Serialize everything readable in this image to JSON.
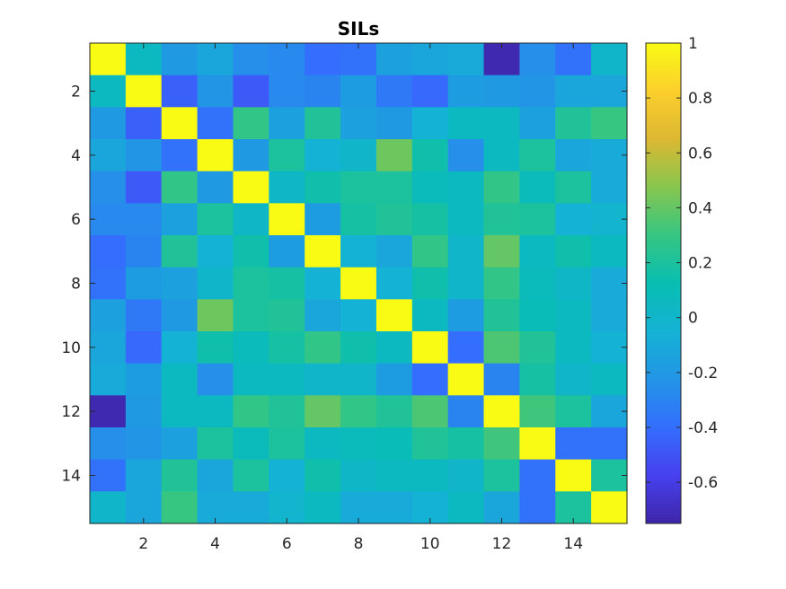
{
  "chart_data": {
    "type": "heatmap",
    "title": "SILs",
    "xlabel": "",
    "ylabel": "",
    "rows": 15,
    "cols": 15,
    "x_ticks": [
      2,
      4,
      6,
      8,
      10,
      12,
      14
    ],
    "y_ticks": [
      2,
      4,
      6,
      8,
      10,
      12,
      14
    ],
    "colorbar": {
      "min": -0.75,
      "max": 1,
      "ticks": [
        1,
        0.8,
        0.6,
        0.4,
        0.2,
        0,
        -0.2,
        -0.4,
        -0.6
      ],
      "tick_labels": [
        "1",
        "0.8",
        "0.6",
        "0.4",
        "0.2",
        "0",
        "-0.2",
        "-0.4",
        "-0.6"
      ],
      "colormap": "parula"
    },
    "values": [
      [
        1.0,
        0.05,
        -0.2,
        -0.12,
        -0.25,
        -0.28,
        -0.4,
        -0.38,
        -0.15,
        -0.12,
        -0.1,
        -0.73,
        -0.25,
        -0.38,
        0.0
      ],
      [
        0.05,
        1.0,
        -0.45,
        -0.22,
        -0.48,
        -0.28,
        -0.3,
        -0.18,
        -0.35,
        -0.42,
        -0.18,
        -0.2,
        -0.22,
        -0.12,
        -0.12
      ],
      [
        -0.2,
        -0.45,
        1.0,
        -0.38,
        0.28,
        -0.15,
        0.22,
        -0.15,
        -0.2,
        -0.05,
        0.05,
        0.05,
        -0.15,
        0.22,
        0.3
      ],
      [
        -0.12,
        -0.22,
        -0.38,
        1.0,
        -0.2,
        0.2,
        -0.05,
        0.0,
        0.42,
        0.15,
        -0.25,
        0.05,
        0.2,
        -0.12,
        -0.1
      ],
      [
        -0.25,
        -0.48,
        0.28,
        -0.2,
        1.0,
        0.02,
        0.15,
        0.2,
        0.2,
        0.08,
        0.05,
        0.28,
        0.08,
        0.2,
        -0.1
      ],
      [
        -0.28,
        -0.28,
        -0.15,
        0.2,
        0.02,
        1.0,
        -0.18,
        0.18,
        0.22,
        0.18,
        0.05,
        0.22,
        0.2,
        -0.05,
        -0.02
      ],
      [
        -0.4,
        -0.3,
        0.22,
        -0.05,
        0.15,
        -0.18,
        1.0,
        -0.05,
        -0.12,
        0.28,
        0.0,
        0.4,
        0.05,
        0.15,
        0.05
      ],
      [
        -0.38,
        -0.18,
        -0.15,
        0.0,
        0.2,
        0.18,
        -0.05,
        1.0,
        -0.05,
        0.15,
        0.0,
        0.28,
        0.08,
        0.02,
        -0.1
      ],
      [
        -0.15,
        -0.35,
        -0.2,
        0.42,
        0.2,
        0.22,
        -0.12,
        -0.05,
        1.0,
        0.05,
        -0.18,
        0.22,
        0.1,
        0.05,
        -0.1
      ],
      [
        -0.12,
        -0.42,
        -0.05,
        0.15,
        0.08,
        0.18,
        0.28,
        0.15,
        0.05,
        1.0,
        -0.4,
        0.35,
        0.22,
        0.05,
        -0.05
      ],
      [
        -0.1,
        -0.18,
        0.05,
        -0.25,
        0.05,
        0.05,
        0.0,
        0.0,
        -0.18,
        -0.4,
        1.0,
        -0.3,
        0.18,
        0.0,
        0.05
      ],
      [
        -0.73,
        -0.2,
        0.05,
        0.05,
        0.28,
        0.22,
        0.4,
        0.28,
        0.22,
        0.35,
        -0.3,
        1.0,
        0.32,
        0.2,
        -0.12
      ],
      [
        -0.25,
        -0.22,
        -0.15,
        0.2,
        0.08,
        0.2,
        0.05,
        0.08,
        0.1,
        0.22,
        0.18,
        0.32,
        1.0,
        -0.38,
        -0.38
      ],
      [
        -0.38,
        -0.12,
        0.22,
        -0.12,
        0.2,
        -0.05,
        0.15,
        0.02,
        0.05,
        0.05,
        0.0,
        0.2,
        -0.38,
        1.0,
        0.2
      ],
      [
        0.0,
        -0.12,
        0.3,
        -0.1,
        -0.1,
        -0.02,
        0.05,
        -0.1,
        -0.1,
        -0.05,
        0.05,
        -0.12,
        -0.38,
        0.2,
        1.0
      ]
    ]
  }
}
